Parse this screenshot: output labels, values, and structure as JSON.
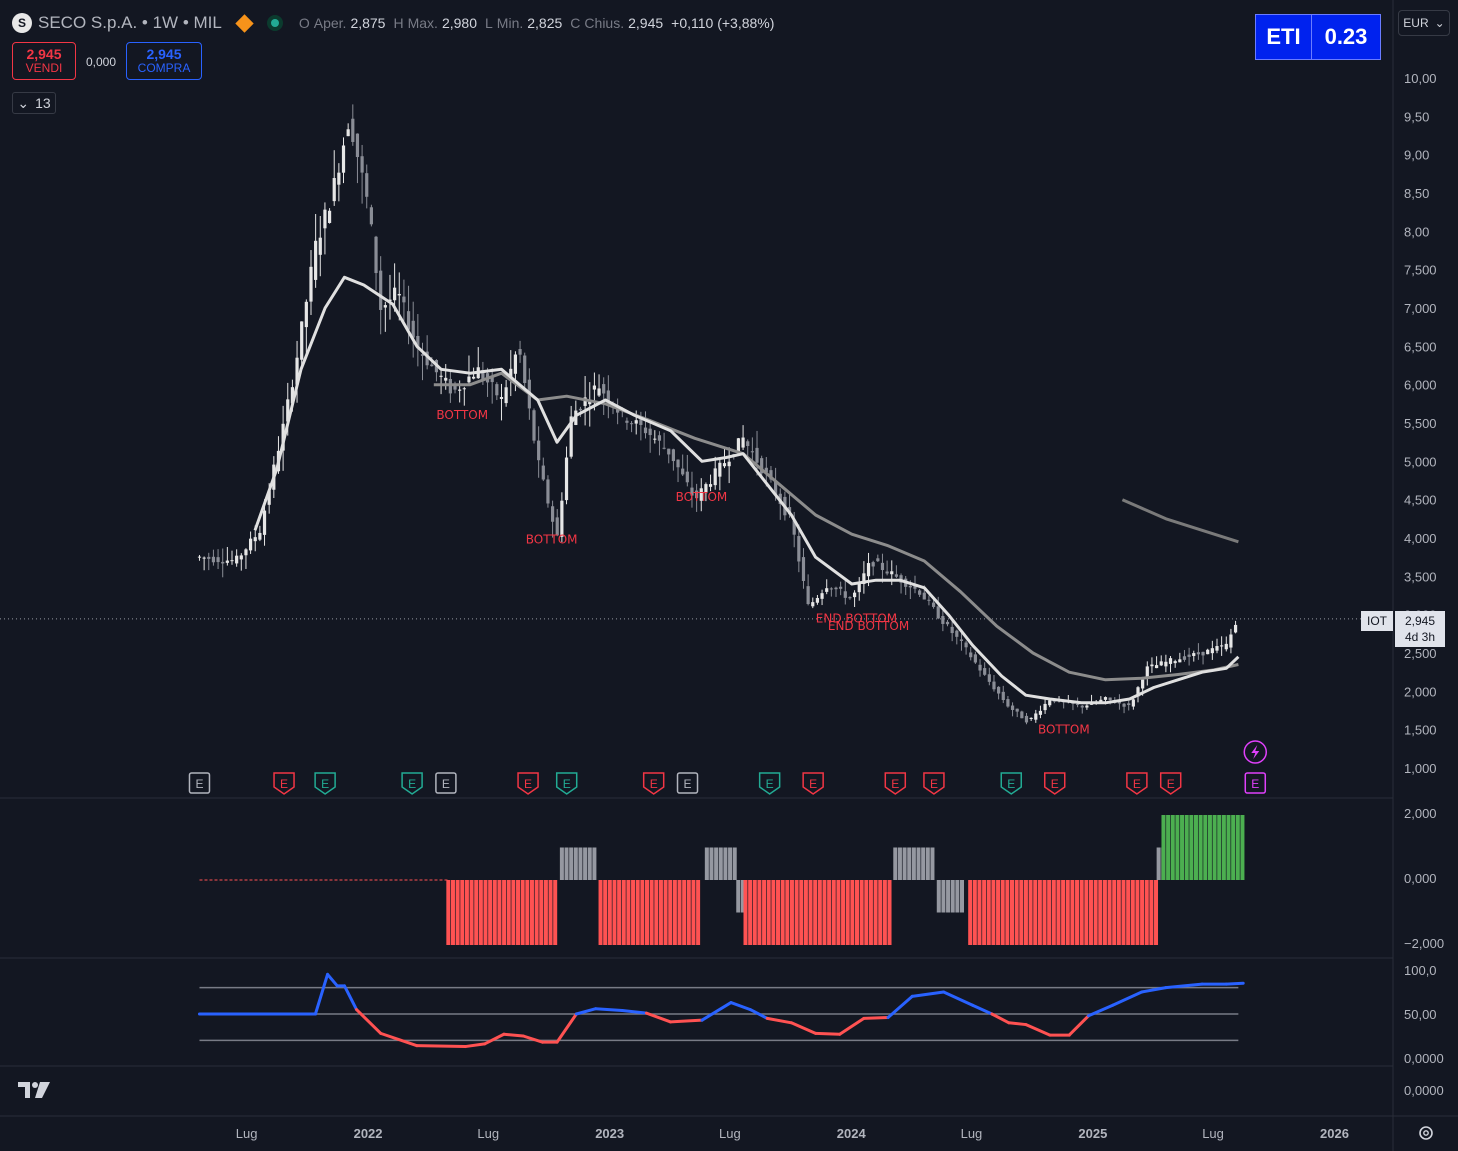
{
  "header": {
    "symbol_logo": "S",
    "symbol": "SECO S.p.A. • 1W • MIL",
    "ohlc": [
      {
        "k": "O",
        "label": "Aper.",
        "v": "2,875"
      },
      {
        "k": "H",
        "label": "Max.",
        "v": "2,980"
      },
      {
        "k": "L",
        "label": "Min.",
        "v": "2,825"
      },
      {
        "k": "C",
        "label": "Chius.",
        "v": "2,945"
      }
    ],
    "change": "+0,110 (+3,88%)"
  },
  "trade": {
    "sell_price": "2,945",
    "sell_label": "VENDI",
    "spread": "0,000",
    "buy_price": "2,945",
    "buy_label": "COMPRA"
  },
  "indicators_count": "13",
  "eti": {
    "label": "ETI",
    "value": "0.23"
  },
  "currency": "EUR",
  "price_label": {
    "tag": "IOT",
    "price": "2,945",
    "countdown": "4d 3h"
  },
  "colors": {
    "bg": "#131722",
    "up": "#4caf50",
    "down": "#ff5252",
    "blue": "#2962ff",
    "ma": "#e0e0e0",
    "ma_slow": "#8c8c8c"
  },
  "chart_data": [
    {
      "type": "candlestick",
      "ylim": [
        0.75,
        10.3
      ],
      "yticks": [
        "1,000",
        "1,500",
        "2,000",
        "2,500",
        "3,000",
        "3,500",
        "4,000",
        "4,500",
        "5,000",
        "5,500",
        "6,000",
        "6,500",
        "7,000",
        "7,500",
        "8,00",
        "8,50",
        "9,00",
        "9,50",
        "10,00"
      ],
      "xticks": [
        "Lug",
        "2022",
        "Lug",
        "2023",
        "Lug",
        "2024",
        "Lug",
        "2025",
        "Lug",
        "2026"
      ],
      "x_range": [
        "2021-01",
        "2026-04"
      ],
      "price_path": [
        [
          2021.3,
          3.75
        ],
        [
          2021.45,
          3.7
        ],
        [
          2021.55,
          4.1
        ],
        [
          2021.65,
          5.5
        ],
        [
          2021.7,
          6.3
        ],
        [
          2021.78,
          7.8
        ],
        [
          2021.85,
          8.5
        ],
        [
          2021.92,
          9.5
        ],
        [
          2022.0,
          8.3
        ],
        [
          2022.05,
          7.0
        ],
        [
          2022.12,
          7.2
        ],
        [
          2022.2,
          6.5
        ],
        [
          2022.27,
          6.2
        ],
        [
          2022.35,
          5.9
        ],
        [
          2022.45,
          6.2
        ],
        [
          2022.55,
          5.8
        ],
        [
          2022.62,
          6.5
        ],
        [
          2022.7,
          5.0
        ],
        [
          2022.78,
          4.0
        ],
        [
          2022.84,
          5.6
        ],
        [
          2022.95,
          6.0
        ],
        [
          2023.05,
          5.6
        ],
        [
          2023.15,
          5.4
        ],
        [
          2023.25,
          5.1
        ],
        [
          2023.35,
          4.5
        ],
        [
          2023.45,
          4.9
        ],
        [
          2023.55,
          5.3
        ],
        [
          2023.65,
          4.8
        ],
        [
          2023.75,
          4.2
        ],
        [
          2023.82,
          3.1
        ],
        [
          2023.9,
          3.4
        ],
        [
          2024.0,
          3.2
        ],
        [
          2024.08,
          3.7
        ],
        [
          2024.18,
          3.5
        ],
        [
          2024.28,
          3.3
        ],
        [
          2024.38,
          2.9
        ],
        [
          2024.46,
          2.6
        ],
        [
          2024.55,
          2.2
        ],
        [
          2024.65,
          1.8
        ],
        [
          2024.73,
          1.6
        ],
        [
          2024.82,
          1.9
        ],
        [
          2024.95,
          1.8
        ],
        [
          2025.05,
          1.9
        ],
        [
          2025.15,
          1.8
        ],
        [
          2025.22,
          2.3
        ],
        [
          2025.32,
          2.4
        ],
        [
          2025.45,
          2.5
        ],
        [
          2025.55,
          2.6
        ],
        [
          2025.6,
          2.95
        ]
      ],
      "ma_fast": [
        [
          2021.53,
          4.1
        ],
        [
          2021.62,
          4.9
        ],
        [
          2021.72,
          6.2
        ],
        [
          2021.82,
          7.0
        ],
        [
          2021.9,
          7.4
        ],
        [
          2021.98,
          7.3
        ],
        [
          2022.1,
          7.05
        ],
        [
          2022.2,
          6.5
        ],
        [
          2022.3,
          6.2
        ],
        [
          2022.42,
          6.15
        ],
        [
          2022.55,
          6.2
        ],
        [
          2022.7,
          5.8
        ],
        [
          2022.78,
          5.25
        ],
        [
          2022.86,
          5.6
        ],
        [
          2022.98,
          5.8
        ],
        [
          2023.1,
          5.6
        ],
        [
          2023.25,
          5.4
        ],
        [
          2023.38,
          5.0
        ],
        [
          2023.48,
          5.05
        ],
        [
          2023.55,
          5.1
        ],
        [
          2023.65,
          4.7
        ],
        [
          2023.75,
          4.3
        ],
        [
          2023.85,
          3.75
        ],
        [
          2024.0,
          3.4
        ],
        [
          2024.1,
          3.45
        ],
        [
          2024.2,
          3.45
        ],
        [
          2024.3,
          3.35
        ],
        [
          2024.4,
          3.0
        ],
        [
          2024.5,
          2.6
        ],
        [
          2024.62,
          2.2
        ],
        [
          2024.72,
          1.95
        ],
        [
          2024.82,
          1.9
        ],
        [
          2024.95,
          1.85
        ],
        [
          2025.05,
          1.85
        ],
        [
          2025.15,
          1.9
        ],
        [
          2025.25,
          2.05
        ],
        [
          2025.35,
          2.15
        ],
        [
          2025.45,
          2.25
        ],
        [
          2025.55,
          2.3
        ],
        [
          2025.6,
          2.45
        ]
      ],
      "ma_slow": [
        [
          2022.27,
          6.0
        ],
        [
          2022.42,
          6.0
        ],
        [
          2022.55,
          6.15
        ],
        [
          2022.7,
          5.8
        ],
        [
          2022.82,
          5.85
        ],
        [
          2022.98,
          5.75
        ],
        [
          2023.15,
          5.55
        ],
        [
          2023.35,
          5.3
        ],
        [
          2023.55,
          5.1
        ],
        [
          2023.7,
          4.7
        ],
        [
          2023.85,
          4.3
        ],
        [
          2024.0,
          4.05
        ],
        [
          2024.15,
          3.9
        ],
        [
          2024.3,
          3.7
        ],
        [
          2024.45,
          3.3
        ],
        [
          2024.6,
          2.85
        ],
        [
          2024.75,
          2.5
        ],
        [
          2024.9,
          2.25
        ],
        [
          2025.05,
          2.15
        ],
        [
          2025.2,
          2.17
        ],
        [
          2025.35,
          2.22
        ],
        [
          2025.5,
          2.28
        ],
        [
          2025.6,
          2.35
        ]
      ],
      "ma_long": [
        [
          2025.12,
          4.5
        ],
        [
          2025.3,
          4.25
        ],
        [
          2025.45,
          4.1
        ],
        [
          2025.6,
          3.95
        ]
      ],
      "annotations": [
        {
          "text": "BOTTOM",
          "x": 2022.37,
          "y": 5.55
        },
        {
          "text": "BOTTOM",
          "x": 2022.74,
          "y": 3.93
        },
        {
          "text": "BOTTOM",
          "x": 2023.36,
          "y": 4.48
        },
        {
          "text": "END BOTTOM",
          "x": 2024.0,
          "y": 2.9
        },
        {
          "text": "END BOTTOM",
          "x": 2024.05,
          "y": 2.8
        },
        {
          "text": "BOTTOM",
          "x": 2024.86,
          "y": 1.45
        }
      ],
      "events": [
        {
          "t": 2021.3,
          "kind": "gray",
          "text": "E"
        },
        {
          "t": 2021.65,
          "kind": "red",
          "text": "E"
        },
        {
          "t": 2021.82,
          "kind": "green",
          "text": "E"
        },
        {
          "t": 2022.18,
          "kind": "green",
          "text": "E"
        },
        {
          "t": 2022.32,
          "kind": "gray",
          "text": "E"
        },
        {
          "t": 2022.66,
          "kind": "red",
          "text": "E"
        },
        {
          "t": 2022.82,
          "kind": "green",
          "text": "E"
        },
        {
          "t": 2023.18,
          "kind": "red",
          "text": "E"
        },
        {
          "t": 2023.32,
          "kind": "gray",
          "text": "E"
        },
        {
          "t": 2023.66,
          "kind": "green",
          "text": "E"
        },
        {
          "t": 2023.84,
          "kind": "red",
          "text": "E"
        },
        {
          "t": 2024.18,
          "kind": "red",
          "text": "E"
        },
        {
          "t": 2024.34,
          "kind": "red",
          "text": "E"
        },
        {
          "t": 2024.66,
          "kind": "green",
          "text": "E"
        },
        {
          "t": 2024.84,
          "kind": "red",
          "text": "E"
        },
        {
          "t": 2025.18,
          "kind": "red",
          "text": "E"
        },
        {
          "t": 2025.32,
          "kind": "red",
          "text": "E"
        },
        {
          "t": 2025.67,
          "kind": "purple",
          "text": "E"
        }
      ]
    },
    {
      "type": "histogram",
      "yticks": [
        "2,000",
        "0,000",
        "−2,000"
      ],
      "ylim": [
        -2.0,
        2.0
      ],
      "segments": [
        {
          "from": 2022.33,
          "to": 2022.78,
          "value": -2,
          "color": "red"
        },
        {
          "from": 2022.8,
          "to": 2022.94,
          "value": 1,
          "color": "gray"
        },
        {
          "from": 2022.96,
          "to": 2023.38,
          "value": -2,
          "color": "red"
        },
        {
          "from": 2023.4,
          "to": 2023.52,
          "value": 1,
          "color": "gray"
        },
        {
          "from": 2023.53,
          "to": 2023.55,
          "value": -1,
          "color": "gray"
        },
        {
          "from": 2023.56,
          "to": 2024.16,
          "value": -2,
          "color": "red"
        },
        {
          "from": 2024.18,
          "to": 2024.34,
          "value": 1,
          "color": "gray"
        },
        {
          "from": 2024.36,
          "to": 2024.47,
          "value": -1,
          "color": "gray"
        },
        {
          "from": 2024.49,
          "to": 2025.26,
          "value": -2,
          "color": "red"
        },
        {
          "from": 2025.27,
          "to": 2025.29,
          "value": 1,
          "color": "gray"
        },
        {
          "from": 2025.29,
          "to": 2025.62,
          "value": 2,
          "color": "green"
        }
      ]
    },
    {
      "type": "line",
      "yticks": [
        "100,0",
        "50,00",
        "0,0000"
      ],
      "ylim": [
        0,
        100
      ],
      "levels": [
        20,
        50,
        80
      ],
      "points": [
        [
          2021.3,
          50
        ],
        [
          2021.78,
          50
        ],
        [
          2021.83,
          95
        ],
        [
          2021.87,
          82
        ],
        [
          2021.9,
          82
        ],
        [
          2021.95,
          55
        ],
        [
          2022.05,
          28
        ],
        [
          2022.2,
          14
        ],
        [
          2022.4,
          13
        ],
        [
          2022.48,
          16
        ],
        [
          2022.56,
          27
        ],
        [
          2022.64,
          25
        ],
        [
          2022.72,
          18
        ],
        [
          2022.78,
          18
        ],
        [
          2022.86,
          50
        ],
        [
          2022.94,
          56
        ],
        [
          2023.05,
          54
        ],
        [
          2023.15,
          51
        ],
        [
          2023.25,
          41
        ],
        [
          2023.38,
          43
        ],
        [
          2023.5,
          63
        ],
        [
          2023.58,
          55
        ],
        [
          2023.65,
          45
        ],
        [
          2023.75,
          40
        ],
        [
          2023.85,
          28
        ],
        [
          2023.95,
          27
        ],
        [
          2024.05,
          45
        ],
        [
          2024.15,
          46
        ],
        [
          2024.25,
          70
        ],
        [
          2024.38,
          75
        ],
        [
          2024.5,
          60
        ],
        [
          2024.58,
          50
        ],
        [
          2024.65,
          40
        ],
        [
          2024.72,
          38
        ],
        [
          2024.82,
          26
        ],
        [
          2024.9,
          26
        ],
        [
          2024.98,
          48
        ],
        [
          2025.08,
          60
        ],
        [
          2025.2,
          75
        ],
        [
          2025.3,
          80
        ],
        [
          2025.45,
          84
        ],
        [
          2025.55,
          84
        ],
        [
          2025.62,
          85
        ]
      ]
    }
  ]
}
